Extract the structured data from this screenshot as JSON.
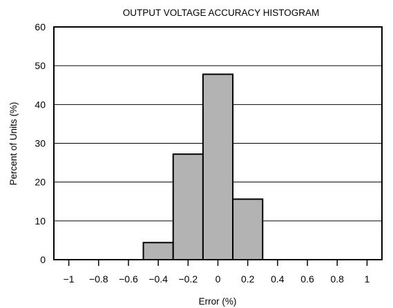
{
  "chart_data": {
    "type": "bar",
    "title": "OUTPUT VOLTAGE ACCURACY HISTOGRAM",
    "xlabel": "Error (%)",
    "ylabel": "Percent of Units (%)",
    "xlim": [
      -1.1,
      1.1
    ],
    "ylim": [
      0,
      60
    ],
    "x_ticks": [
      -1,
      -0.8,
      -0.6,
      -0.4,
      -0.2,
      0,
      0.2,
      0.4,
      0.6,
      0.8,
      1
    ],
    "x_tick_labels": [
      "−1",
      "−0.8",
      "−0.6",
      "−0.4",
      "−0.2",
      "0",
      "0.2",
      "0.4",
      "0.6",
      "0.8",
      "1"
    ],
    "y_ticks": [
      0,
      10,
      20,
      30,
      40,
      50,
      60
    ],
    "y_tick_labels": [
      "0",
      "10",
      "20",
      "30",
      "40",
      "50",
      "60"
    ],
    "grid": "horizontal",
    "bar_color": "#b3b3b3",
    "bins": [
      {
        "x0": -0.5,
        "x1": -0.3,
        "value": 4.4
      },
      {
        "x0": -0.3,
        "x1": -0.1,
        "value": 27.2
      },
      {
        "x0": -0.1,
        "x1": 0.1,
        "value": 47.8
      },
      {
        "x0": 0.1,
        "x1": 0.3,
        "value": 15.6
      }
    ]
  }
}
